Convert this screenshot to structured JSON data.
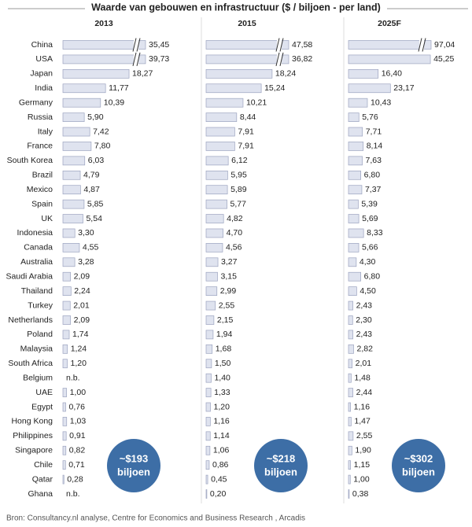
{
  "title": "Waarde van gebouwen en infrastructuur  ($ / biljoen - per land)",
  "source": "Bron: Consultancy.nl analyse, Centre for Economics and Business Research , Arcadis",
  "chart_data": {
    "type": "bar",
    "orientation": "horizontal",
    "color": "#dfe3ef",
    "categories": [
      "China",
      "USA",
      "Japan",
      "India",
      "Germany",
      "Russia",
      "Italy",
      "France",
      "South Korea",
      "Brazil",
      "Mexico",
      "Spain",
      "UK",
      "Indonesia",
      "Canada",
      "Australia",
      "Saudi Arabia",
      "Thailand",
      "Turkey",
      "Netherlands",
      "Poland",
      "Malaysia",
      "South Africa",
      "Belgium",
      "UAE",
      "Egypt",
      "Hong Kong",
      "Philippines",
      "Singapore",
      "Chile",
      "Qatar",
      "Ghana"
    ],
    "series": [
      {
        "name": "2013",
        "annotation": [
          "~$193",
          "biljoen"
        ],
        "values": [
          35.45,
          39.73,
          18.27,
          11.77,
          10.39,
          5.9,
          7.42,
          7.8,
          6.03,
          4.79,
          4.87,
          5.85,
          5.54,
          3.3,
          4.55,
          3.28,
          2.09,
          2.24,
          2.01,
          2.09,
          1.74,
          1.24,
          1.2,
          null,
          1.0,
          0.76,
          1.03,
          0.91,
          0.82,
          0.71,
          0.28,
          null
        ],
        "value_labels": [
          "35,45",
          "39,73",
          "18,27",
          "11,77",
          "10,39",
          "5,90",
          "7,42",
          "7,80",
          "6,03",
          "4,79",
          "4,87",
          "5,85",
          "5,54",
          "3,30",
          "4,55",
          "3,28",
          "2,09",
          "2,24",
          "2,01",
          "2,09",
          "1,74",
          "1,24",
          "1,20",
          "n.b.",
          "1,00",
          "0,76",
          "1,03",
          "0,91",
          "0,82",
          "0,71",
          "0,28",
          "n.b."
        ]
      },
      {
        "name": "2015",
        "annotation": [
          "~$218",
          "biljoen"
        ],
        "values": [
          47.58,
          36.82,
          18.24,
          15.24,
          10.21,
          8.44,
          7.91,
          7.91,
          6.12,
          5.95,
          5.89,
          5.77,
          4.82,
          4.7,
          4.56,
          3.27,
          3.15,
          2.99,
          2.55,
          2.15,
          1.94,
          1.68,
          1.5,
          1.4,
          1.33,
          1.2,
          1.16,
          1.14,
          1.06,
          0.86,
          0.45,
          0.2
        ],
        "value_labels": [
          "47,58",
          "36,82",
          "18,24",
          "15,24",
          "10,21",
          "8,44",
          "7,91",
          "7,91",
          "6,12",
          "5,95",
          "5,89",
          "5,77",
          "4,82",
          "4,70",
          "4,56",
          "3,27",
          "3,15",
          "2,99",
          "2,55",
          "2,15",
          "1,94",
          "1,68",
          "1,50",
          "1,40",
          "1,33",
          "1,20",
          "1,16",
          "1,14",
          "1,06",
          "0,86",
          "0,45",
          "0,20"
        ]
      },
      {
        "name": "2025F",
        "annotation": [
          "~$302",
          "biljoen"
        ],
        "values": [
          97.04,
          45.25,
          16.4,
          23.17,
          10.43,
          5.76,
          7.71,
          8.14,
          7.63,
          6.8,
          7.37,
          5.39,
          5.69,
          8.33,
          5.66,
          4.3,
          6.8,
          4.5,
          2.43,
          2.3,
          2.43,
          2.82,
          2.01,
          1.48,
          2.44,
          1.16,
          1.47,
          2.55,
          1.9,
          1.15,
          1.0,
          0.38
        ],
        "value_labels": [
          "97,04",
          "45,25",
          "16,40",
          "23,17",
          "10,43",
          "5,76",
          "7,71",
          "8,14",
          "7,63",
          "6,80",
          "7,37",
          "5,39",
          "5,69",
          "8,33",
          "5,66",
          "4,30",
          "6,80",
          "4,50",
          "2,43",
          "2,30",
          "2,43",
          "2,82",
          "2,01",
          "1,48",
          "2,44",
          "1,16",
          "1,47",
          "2,55",
          "1,90",
          "1,15",
          "1,00",
          "0,38"
        ]
      }
    ]
  }
}
